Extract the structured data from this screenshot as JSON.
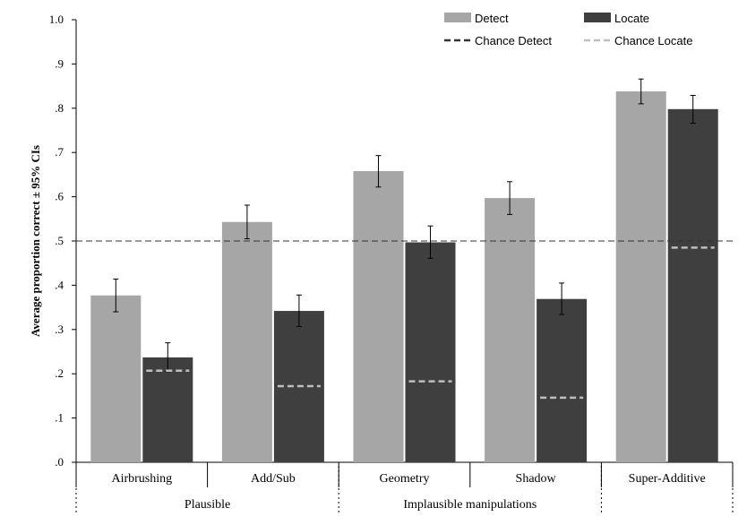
{
  "chart_data": {
    "type": "bar",
    "title": "",
    "xlabel": "",
    "ylabel": "Average proportion correct ± 95% CIs",
    "ylim": [
      0,
      1.0
    ],
    "yticks": [
      0,
      0.1,
      0.2,
      0.3,
      0.4,
      0.5,
      0.6,
      0.7,
      0.8,
      0.9,
      1.0
    ],
    "ytick_labels": [
      ".0",
      ".1",
      ".2",
      ".3",
      ".4",
      ".5",
      ".6",
      ".7",
      ".8",
      ".9",
      "1.0"
    ],
    "categories": [
      "Airbrushing",
      "Add/Sub",
      "Geometry",
      "Shadow",
      "Super-Additive"
    ],
    "groups": [
      {
        "label": "Plausible",
        "categories": [
          0,
          1
        ]
      },
      {
        "label": "Implausible manipulations",
        "categories": [
          2,
          3
        ]
      },
      {
        "label": "",
        "categories": [
          4
        ]
      }
    ],
    "series": [
      {
        "name": "Detect",
        "color": "#a6a6a6",
        "values": [
          0.377,
          0.543,
          0.658,
          0.597,
          0.838
        ],
        "ci_low": [
          0.34,
          0.505,
          0.622,
          0.56,
          0.81
        ],
        "ci_high": [
          0.414,
          0.581,
          0.693,
          0.634,
          0.866
        ]
      },
      {
        "name": "Locate",
        "color": "#3f3f3f",
        "values": [
          0.237,
          0.342,
          0.497,
          0.369,
          0.798
        ],
        "ci_low": [
          0.205,
          0.307,
          0.461,
          0.334,
          0.766
        ],
        "ci_high": [
          0.27,
          0.378,
          0.534,
          0.405,
          0.829
        ]
      }
    ],
    "reference_lines": [
      {
        "name": "Chance Detect",
        "style": "dashed",
        "color": "#333333",
        "value": 0.5
      },
      {
        "name": "Chance Locate",
        "style": "dashed",
        "color": "#bfbfbf",
        "values": [
          0.207,
          0.172,
          0.183,
          0.146,
          0.485
        ]
      }
    ],
    "legend": {
      "position": "top-right",
      "entries": [
        "Detect",
        "Locate",
        "Chance Detect",
        "Chance Locate"
      ]
    },
    "grid": false
  }
}
